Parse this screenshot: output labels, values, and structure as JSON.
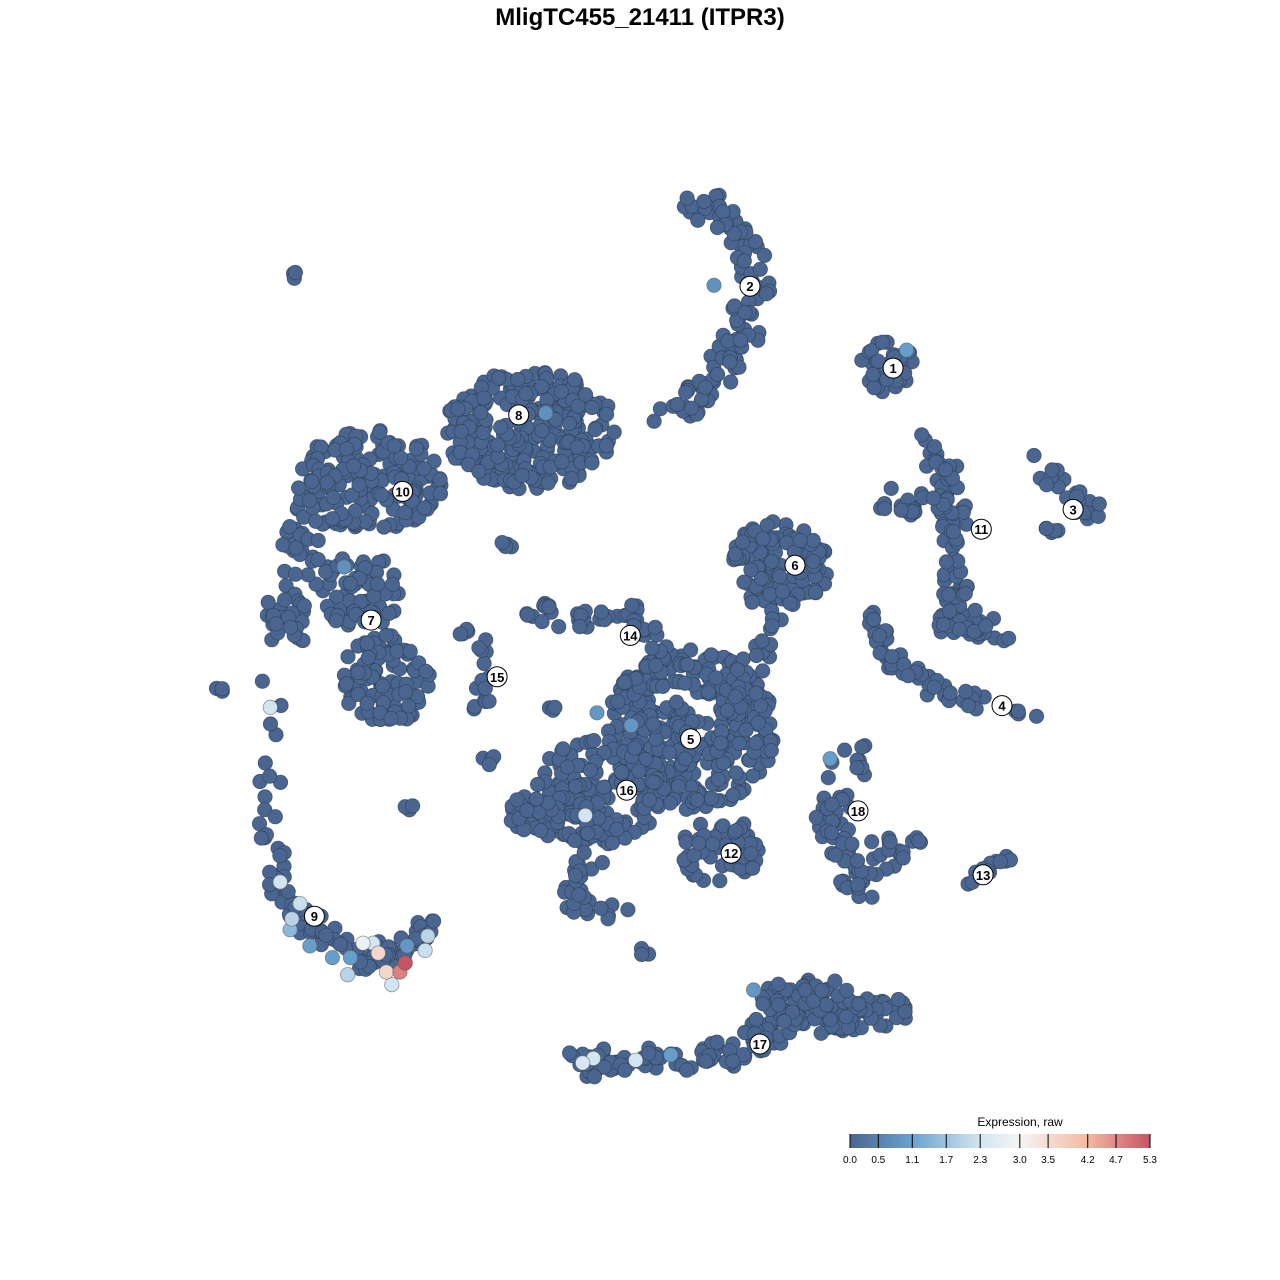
{
  "chart_data": {
    "type": "scatter",
    "title": "MligTC455_21411 (ITPR3)",
    "xlabel": "",
    "ylabel": "",
    "xlim": [
      -50,
      50
    ],
    "ylim": [
      -52,
      52
    ],
    "grid": false,
    "axes_visible": false,
    "background_expression": 0.0,
    "cluster_labels": [
      {
        "label": "1",
        "x": 25.9,
        "y": 29.1
      },
      {
        "label": "2",
        "x": 10.0,
        "y": 38.2
      },
      {
        "label": "3",
        "x": 45.9,
        "y": 13.4
      },
      {
        "label": "4",
        "x": 38.0,
        "y": -8.4
      },
      {
        "label": "5",
        "x": 3.4,
        "y": -12.1
      },
      {
        "label": "6",
        "x": 15.0,
        "y": 7.2
      },
      {
        "label": "7",
        "x": -32.1,
        "y": 1.1
      },
      {
        "label": "8",
        "x": -15.7,
        "y": 23.9
      },
      {
        "label": "9",
        "x": -38.4,
        "y": -31.8
      },
      {
        "label": "10",
        "x": -28.6,
        "y": 15.4
      },
      {
        "label": "11",
        "x": 35.7,
        "y": 11.2
      },
      {
        "label": "12",
        "x": 7.9,
        "y": -24.8
      },
      {
        "label": "13",
        "x": 35.9,
        "y": -27.2
      },
      {
        "label": "14",
        "x": -3.3,
        "y": -0.6
      },
      {
        "label": "15",
        "x": -18.1,
        "y": -5.2
      },
      {
        "label": "16",
        "x": -3.7,
        "y": -17.8
      },
      {
        "label": "17",
        "x": 11.1,
        "y": -46.0
      },
      {
        "label": "18",
        "x": 22.0,
        "y": -20.1
      }
    ],
    "expressing_points": [
      {
        "x": 6.0,
        "y": 38.3,
        "value": 0.8
      },
      {
        "x": 27.4,
        "y": 31.1,
        "value": 1.0
      },
      {
        "x": -12.7,
        "y": 24.1,
        "value": 0.8
      },
      {
        "x": -35.1,
        "y": 7.0,
        "value": 0.8
      },
      {
        "x": -43.3,
        "y": -8.6,
        "value": 2.3
      },
      {
        "x": -7.0,
        "y": -9.2,
        "value": 0.9
      },
      {
        "x": -3.2,
        "y": -10.6,
        "value": 0.9
      },
      {
        "x": 18.9,
        "y": -14.3,
        "value": 1.0
      },
      {
        "x": -8.3,
        "y": -20.6,
        "value": 2.3
      },
      {
        "x": -42.2,
        "y": -28.0,
        "value": 2.3
      },
      {
        "x": -40.0,
        "y": -30.4,
        "value": 2.2
      },
      {
        "x": -40.9,
        "y": -32.1,
        "value": 2.0
      },
      {
        "x": -38.9,
        "y": -35.1,
        "value": 1.0
      },
      {
        "x": -33.0,
        "y": -34.8,
        "value": 2.8
      },
      {
        "x": -31.9,
        "y": -34.8,
        "value": 2.3
      },
      {
        "x": -31.3,
        "y": -35.9,
        "value": 3.6
      },
      {
        "x": -30.4,
        "y": -38.0,
        "value": 3.6
      },
      {
        "x": -28.3,
        "y": -37.0,
        "value": 5.3
      },
      {
        "x": -28.9,
        "y": -38.0,
        "value": 4.8
      },
      {
        "x": -29.8,
        "y": -39.4,
        "value": 2.3
      },
      {
        "x": -34.7,
        "y": -38.3,
        "value": 2.0
      },
      {
        "x": -34.4,
        "y": -36.4,
        "value": 1.0
      },
      {
        "x": -26.1,
        "y": -35.6,
        "value": 2.2
      },
      {
        "x": -25.8,
        "y": -34.0,
        "value": 2.0
      },
      {
        "x": -28.1,
        "y": -35.1,
        "value": 0.9
      },
      {
        "x": -36.4,
        "y": -36.4,
        "value": 1.0
      },
      {
        "x": -41.1,
        "y": -33.3,
        "value": 1.5
      },
      {
        "x": 10.4,
        "y": -40.0,
        "value": 0.9
      },
      {
        "x": 1.2,
        "y": -47.2,
        "value": 1.0
      },
      {
        "x": -2.7,
        "y": -47.8,
        "value": 2.3
      },
      {
        "x": -8.6,
        "y": -48.1,
        "value": 2.4
      },
      {
        "x": -7.4,
        "y": -47.6,
        "value": 2.3
      }
    ],
    "legend": {
      "title": "Expression, raw",
      "position": "bottom-right",
      "ticks": [
        "0.0",
        "0.5",
        "1.1",
        "1.7",
        "2.3",
        "3.0",
        "3.5",
        "4.2",
        "4.7",
        "5.3"
      ],
      "range": [
        0.0,
        5.3
      ],
      "colors": [
        "#4a6690",
        "#6aa2cf",
        "#d3e5f0",
        "#f5f5f5",
        "#f3b9a0",
        "#c65466"
      ]
    }
  }
}
